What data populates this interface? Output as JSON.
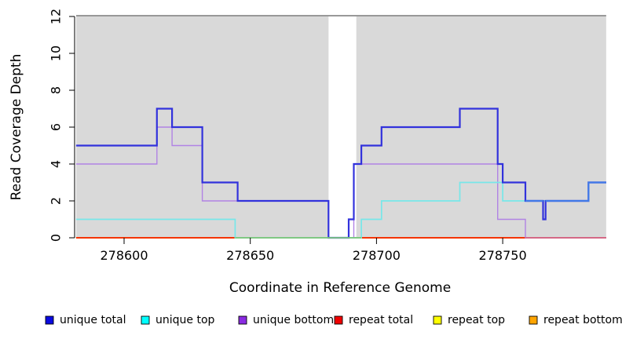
{
  "axes": {
    "x": {
      "label": "Coordinate in Reference Genome",
      "ticks": [
        278600,
        278650,
        278700,
        278750
      ],
      "range": [
        278581,
        278791
      ]
    },
    "y": {
      "label": "Read Coverage Depth",
      "ticks": [
        0,
        2,
        4,
        6,
        8,
        10,
        12
      ],
      "range": [
        0,
        12
      ]
    }
  },
  "chart_data": {
    "type": "line",
    "style": "step",
    "title": "",
    "xlabel": "Coordinate in Reference Genome",
    "ylabel": "Read Coverage Depth",
    "xlim": [
      278581,
      278791
    ],
    "ylim": [
      0,
      12
    ],
    "grid": false,
    "plot_background_color": "#d9d9d9",
    "background_regions": [
      [
        278581,
        278681
      ],
      [
        278692,
        278791
      ]
    ],
    "gap_region": [
      278681,
      278692
    ],
    "top_border_color": "#999999",
    "series": [
      {
        "name": "unique total",
        "color": "#3232dc",
        "width": 2.2,
        "steps": [
          [
            278581,
            5
          ],
          [
            278613,
            7
          ],
          [
            278619,
            6
          ],
          [
            278631,
            3
          ],
          [
            278645,
            2
          ],
          [
            278681,
            0
          ],
          [
            278689,
            1
          ],
          [
            278691,
            4
          ],
          [
            278694,
            5
          ],
          [
            278702,
            6
          ],
          [
            278733,
            7
          ],
          [
            278748,
            4
          ],
          [
            278750,
            3
          ],
          [
            278759,
            2
          ],
          [
            278766,
            1
          ],
          [
            278767,
            2
          ],
          [
            278784,
            3
          ]
        ],
        "x_end": 278791
      },
      {
        "name": "unique top",
        "color": "#77e7e9",
        "width": 1.7,
        "steps": [
          [
            278581,
            1
          ],
          [
            278644,
            0
          ],
          [
            278694,
            1
          ],
          [
            278702,
            2
          ],
          [
            278733,
            3
          ],
          [
            278750,
            2
          ],
          [
            278784,
            3
          ]
        ],
        "x_end": 278791
      },
      {
        "name": "unique bottom",
        "color": "#b183e4",
        "width": 1.4,
        "steps": [
          [
            278581,
            4
          ],
          [
            278613,
            6
          ],
          [
            278619,
            5
          ],
          [
            278631,
            2
          ],
          [
            278681,
            0
          ],
          [
            278691,
            4
          ],
          [
            278748,
            1
          ],
          [
            278759,
            0
          ]
        ],
        "x_end": 278791
      },
      {
        "name": "repeat total",
        "color": "#f00000",
        "width": 1.4,
        "steps": [
          [
            278581,
            0
          ]
        ],
        "x_end": 278791
      },
      {
        "name": "repeat top",
        "color": "#ffff00",
        "width": 1.4,
        "steps": [
          [
            278581,
            0
          ]
        ],
        "x_end": 278791
      },
      {
        "name": "repeat bottom",
        "color": "#ff9e00",
        "width": 2,
        "steps": [
          [
            278581,
            0
          ]
        ],
        "x_end": 278791
      }
    ],
    "overlap_blends": [
      {
        "name": "unique-top-over-repeat-bottom",
        "color": "#7cc87d",
        "width": 1.7,
        "pts": [
          [
            278644,
            0
          ],
          [
            278694,
            0
          ]
        ]
      },
      {
        "name": "unique-bottom-over-repeat-bottom",
        "color": "#d4668a",
        "width": 1.7,
        "pts": [
          [
            278759,
            0
          ],
          [
            278791,
            0
          ]
        ]
      },
      {
        "name": "unique-total-over-unique-top-a",
        "color": "#4079e8",
        "width": 2.2,
        "pts": [
          [
            278759,
            2
          ],
          [
            278766,
            2
          ]
        ]
      },
      {
        "name": "unique-total-over-unique-top-b",
        "color": "#4079e8",
        "width": 2.2,
        "pts": [
          [
            278767,
            2
          ],
          [
            278784,
            2
          ],
          [
            278784,
            3
          ],
          [
            278791,
            3
          ]
        ]
      }
    ]
  },
  "legend": {
    "items": [
      {
        "label": "unique total",
        "color": "#0a0ae0"
      },
      {
        "label": "unique top",
        "color": "#00ffff"
      },
      {
        "label": "unique bottom",
        "color": "#8a2be2"
      },
      {
        "label": "repeat total",
        "color": "#f00000"
      },
      {
        "label": "repeat top",
        "color": "#ffff00"
      },
      {
        "label": "repeat bottom",
        "color": "#ffa500"
      }
    ]
  }
}
